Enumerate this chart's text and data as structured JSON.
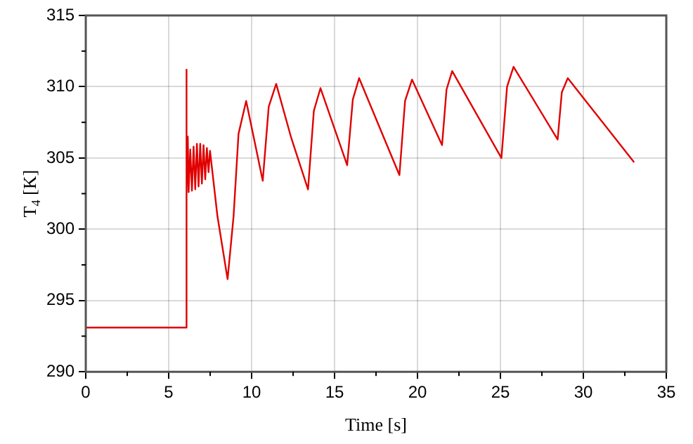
{
  "chart_data": {
    "type": "line",
    "xlabel": "Time [s]",
    "ylabel": "T$_{4}$ [K]",
    "xlim": [
      0,
      35
    ],
    "ylim": [
      290,
      315
    ],
    "xticks": [
      0,
      5,
      10,
      15,
      20,
      25,
      30,
      35
    ],
    "yticks": [
      290,
      295,
      300,
      305,
      310,
      315
    ],
    "grid": true,
    "legend": false,
    "marker": "none",
    "line_style": "solid",
    "series": [
      {
        "color": "#e00000",
        "x": [
          0,
          6.03,
          6.05,
          6.1,
          6.15,
          6.2,
          6.3,
          6.4,
          6.5,
          6.6,
          6.7,
          6.8,
          6.9,
          7.0,
          7.1,
          7.2,
          7.3,
          7.4,
          7.49,
          7.94,
          8.55,
          8.91,
          9.21,
          9.67,
          10.67,
          11.03,
          11.48,
          12.39,
          13.4,
          13.75,
          14.15,
          15.76,
          16.1,
          16.48,
          18.91,
          19.25,
          19.67,
          21.48,
          21.75,
          22.09,
          25.06,
          25.4,
          25.79,
          28.45,
          28.7,
          29.06,
          33.06
        ],
        "values": [
          293.1,
          293.1,
          311.2,
          302.5,
          306.5,
          302.6,
          305.6,
          302.7,
          305.8,
          302.8,
          306.0,
          303.0,
          306.0,
          303.2,
          305.9,
          303.5,
          305.7,
          304.0,
          305.5,
          300.9,
          296.5,
          300.9,
          306.7,
          309.0,
          303.4,
          308.6,
          310.2,
          306.4,
          302.8,
          308.3,
          309.9,
          304.5,
          309.1,
          310.6,
          303.8,
          309.0,
          310.5,
          305.9,
          309.8,
          311.1,
          305.0,
          310.0,
          311.4,
          306.3,
          309.6,
          310.6,
          304.7
        ]
      }
    ]
  }
}
